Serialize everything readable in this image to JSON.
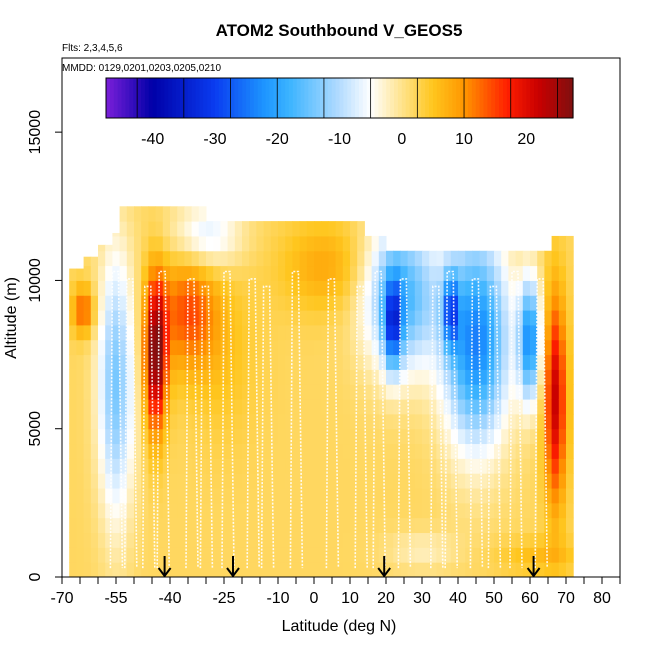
{
  "chart_data": {
    "type": "heatmap",
    "title": "ATOM2 Southbound V_GEOS5",
    "flights_text": "Flts: 2,3,4,5,6",
    "dates_text": "MMDD: 0129,0201,0203,0205,0210",
    "xlabel": "Latitude (deg N)",
    "ylabel": "Altitude (m)",
    "xlim": [
      -70,
      85
    ],
    "ylim": [
      0,
      17500
    ],
    "x_ticks": [
      -70,
      -55,
      -40,
      -25,
      -10,
      0,
      10,
      20,
      30,
      40,
      50,
      60,
      70,
      80
    ],
    "x_minor_ticks": [
      -65,
      -60,
      -50,
      -45,
      -35,
      -30,
      -20,
      -15,
      -5,
      5,
      15,
      25,
      35,
      45,
      55,
      65,
      75,
      85
    ],
    "y_ticks": [
      0,
      5000,
      10000,
      15000
    ],
    "colorbar": {
      "ticks": [
        -40,
        -30,
        -20,
        -10,
        0,
        10,
        20
      ],
      "range": [
        -47.5,
        27.5
      ],
      "colors": [
        {
          "v": -47.5,
          "c": "#7b1fd9"
        },
        {
          "v": -40,
          "c": "#0000a8"
        },
        {
          "v": -30,
          "c": "#0a3cf0"
        },
        {
          "v": -22,
          "c": "#1e96ff"
        },
        {
          "v": -18,
          "c": "#3cb4ff"
        },
        {
          "v": -10,
          "c": "#b4dcff"
        },
        {
          "v": -5,
          "c": "#ffffff"
        },
        {
          "v": 0,
          "c": "#ffe38c"
        },
        {
          "v": 5,
          "c": "#ffc61e"
        },
        {
          "v": 10,
          "c": "#ff9600"
        },
        {
          "v": 17,
          "c": "#ff1e00"
        },
        {
          "v": 22,
          "c": "#c80000"
        },
        {
          "v": 27.5,
          "c": "#801010"
        }
      ]
    },
    "flight_leg_arrows_lat": [
      -41.5,
      -22.5,
      19.5,
      61
    ]
  }
}
